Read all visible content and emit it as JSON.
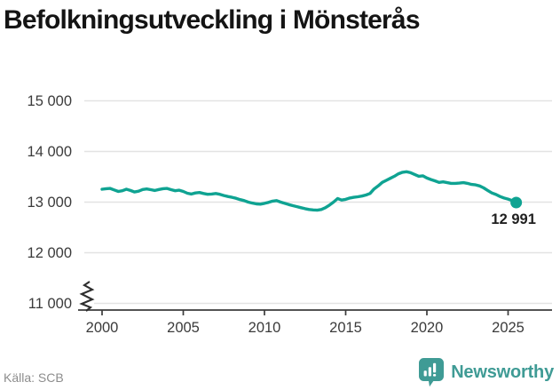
{
  "title": "Befolkningsutveckling i Mönsterås",
  "source": "Källa: SCB",
  "branding": {
    "name": "Newsworthy",
    "logo_icon": "bar-chart-speech-bubble-icon",
    "color": "#3f9b95"
  },
  "colors": {
    "line": "#0fa392",
    "grid": "#e3e3e3",
    "axis": "#3c3c3c",
    "tick_text": "#3b3b3b",
    "title_text": "#141414",
    "source_text": "#8d8d8d",
    "end_label_text": "#1f1f1f",
    "background": "#ffffff"
  },
  "chart_data": {
    "type": "line",
    "title": "Befolkningsutveckling i Mönsterås",
    "xlabel": "",
    "ylabel": "",
    "grid": "horizontal",
    "axis_break": true,
    "legend": "none",
    "x_ticks": [
      2000,
      2005,
      2010,
      2015,
      2020,
      2025
    ],
    "y_ticks": [
      "15 000",
      "14 000",
      "13 000",
      "12 000",
      "11 000"
    ],
    "y_tick_values": [
      15000,
      14000,
      13000,
      12000,
      11000
    ],
    "ylim": [
      11000,
      15250
    ],
    "xlim": [
      1999,
      2027.5
    ],
    "end_label": "12 991",
    "end_value": 12991,
    "x_start": 2000,
    "x_step_years": 0.25,
    "series": [
      {
        "name": "Befolkning",
        "y": [
          13255,
          13265,
          13270,
          13240,
          13210,
          13225,
          13255,
          13230,
          13200,
          13215,
          13250,
          13260,
          13245,
          13230,
          13250,
          13265,
          13270,
          13245,
          13225,
          13235,
          13210,
          13175,
          13160,
          13180,
          13190,
          13170,
          13155,
          13160,
          13170,
          13155,
          13130,
          13110,
          13095,
          13075,
          13050,
          13030,
          13000,
          12980,
          12965,
          12960,
          12975,
          12995,
          13020,
          13030,
          13000,
          12975,
          12950,
          12930,
          12910,
          12890,
          12870,
          12855,
          12845,
          12840,
          12855,
          12890,
          12940,
          13000,
          13070,
          13040,
          13055,
          13080,
          13095,
          13105,
          13120,
          13140,
          13170,
          13260,
          13320,
          13390,
          13430,
          13470,
          13510,
          13560,
          13590,
          13600,
          13580,
          13545,
          13510,
          13520,
          13475,
          13445,
          13420,
          13390,
          13400,
          13385,
          13370,
          13370,
          13375,
          13385,
          13370,
          13350,
          13340,
          13320,
          13280,
          13230,
          13180,
          13150,
          13110,
          13080,
          13060,
          13030,
          12991
        ]
      }
    ]
  }
}
